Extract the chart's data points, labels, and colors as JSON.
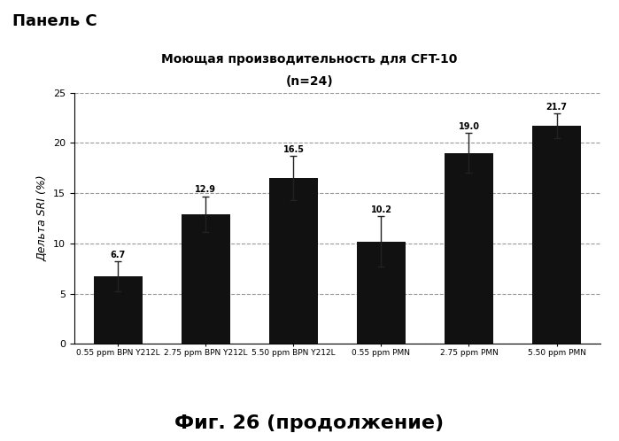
{
  "title_line1": "Моющая производительность для CFT-10",
  "title_line2": "(n=24)",
  "panel_label": "Панель С",
  "footer": "Фиг. 26 (продолжение)",
  "ylabel": "Дельта SRI (%)",
  "categories": [
    "0.55 ppm BPN Y212L",
    "2.75 ppm BPN Y212L",
    "5.50 ppm BPN Y212L",
    "0.55 ppm PMN",
    "2.75 ppm PMN",
    "5.50 ppm PMN"
  ],
  "values": [
    6.7,
    12.9,
    16.5,
    10.2,
    19.0,
    21.7
  ],
  "errors": [
    1.5,
    1.8,
    2.2,
    2.5,
    2.0,
    1.2
  ],
  "bar_color": "#111111",
  "ylim": [
    0,
    25
  ],
  "yticks": [
    0,
    5,
    10,
    15,
    20,
    25
  ],
  "grid_color": "#999999",
  "background_color": "#ffffff",
  "value_labels": [
    "6.7",
    "12.9",
    "16.5",
    "10.2",
    "19.0",
    "21.7"
  ]
}
